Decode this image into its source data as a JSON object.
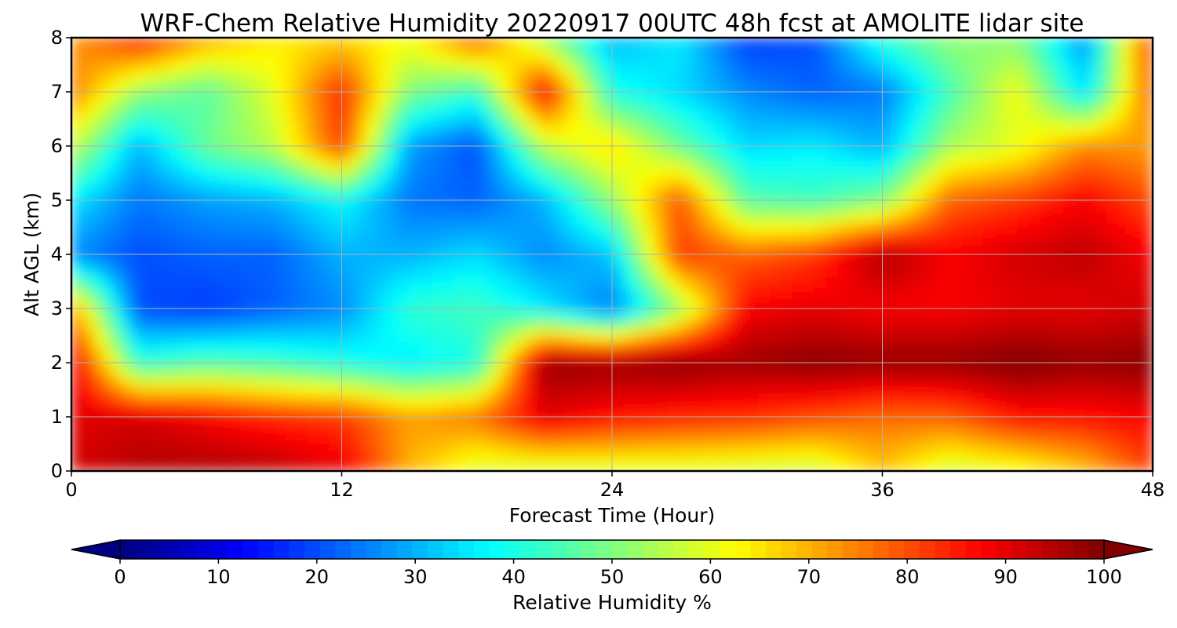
{
  "chart_data": {
    "type": "heatmap",
    "title": "WRF-Chem Relative Humidity 20220917 00UTC 48h fcst at AMOLITE lidar site",
    "xlabel": "Forecast Time (Hour)",
    "ylabel": "Alt AGL (km)",
    "xlim": [
      0,
      48
    ],
    "ylim": [
      0,
      8
    ],
    "xticks": [
      0,
      12,
      24,
      36,
      48
    ],
    "yticks": [
      0,
      1,
      2,
      3,
      4,
      5,
      6,
      7,
      8
    ],
    "grid": true,
    "colormap": "jet",
    "x": [
      0,
      3,
      6,
      9,
      12,
      15,
      18,
      21,
      24,
      27,
      30,
      33,
      36,
      39,
      42,
      45,
      48
    ],
    "y": [
      0,
      1,
      2,
      3,
      4,
      5,
      6,
      7,
      8
    ],
    "z": [
      [
        92,
        95,
        96,
        95,
        90,
        70,
        58,
        57,
        58,
        58,
        57,
        56,
        68,
        57,
        60,
        68,
        82
      ],
      [
        90,
        92,
        88,
        84,
        82,
        72,
        76,
        90,
        86,
        84,
        83,
        80,
        77,
        78,
        86,
        86,
        88
      ],
      [
        92,
        42,
        46,
        44,
        40,
        36,
        40,
        98,
        98,
        99,
        97,
        99,
        98,
        98,
        100,
        98,
        99
      ],
      [
        74,
        20,
        18,
        22,
        26,
        42,
        44,
        36,
        24,
        52,
        88,
        90,
        88,
        88,
        90,
        90,
        92
      ],
      [
        26,
        20,
        22,
        22,
        30,
        30,
        34,
        26,
        32,
        82,
        78,
        82,
        96,
        88,
        92,
        94,
        88
      ],
      [
        36,
        24,
        28,
        30,
        38,
        24,
        22,
        30,
        52,
        80,
        46,
        44,
        50,
        78,
        82,
        88,
        80
      ],
      [
        58,
        30,
        48,
        56,
        82,
        28,
        20,
        56,
        66,
        48,
        34,
        36,
        30,
        54,
        60,
        74,
        72
      ],
      [
        76,
        52,
        46,
        60,
        84,
        50,
        42,
        88,
        40,
        34,
        26,
        22,
        24,
        44,
        62,
        34,
        80
      ],
      [
        72,
        86,
        72,
        64,
        66,
        62,
        80,
        52,
        30,
        36,
        18,
        20,
        42,
        52,
        50,
        26,
        84
      ]
    ],
    "colorbar": {
      "label": "Relative Humidity %",
      "ticks": [
        0,
        10,
        20,
        30,
        40,
        50,
        60,
        70,
        80,
        90,
        100
      ],
      "range": [
        0,
        100
      ],
      "extend": "both"
    }
  }
}
